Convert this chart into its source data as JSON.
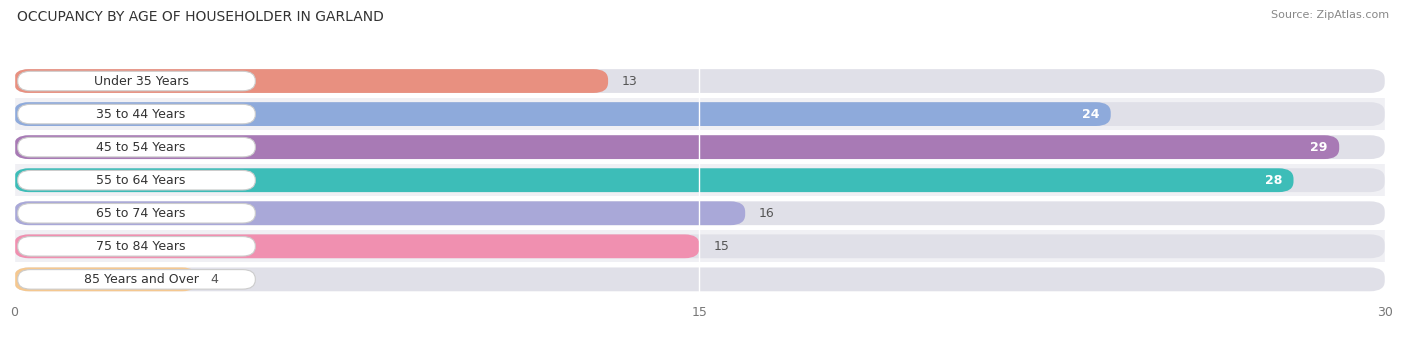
{
  "title": "OCCUPANCY BY AGE OF HOUSEHOLDER IN GARLAND",
  "source": "Source: ZipAtlas.com",
  "categories": [
    "Under 35 Years",
    "35 to 44 Years",
    "45 to 54 Years",
    "55 to 64 Years",
    "65 to 74 Years",
    "75 to 84 Years",
    "85 Years and Over"
  ],
  "values": [
    13,
    24,
    29,
    28,
    16,
    15,
    4
  ],
  "bar_colors": [
    "#e89080",
    "#8eaadb",
    "#a87ab5",
    "#3dbdb8",
    "#a9a8d8",
    "#f090b0",
    "#f5c890"
  ],
  "xlim": [
    0,
    30
  ],
  "xticks": [
    0,
    15,
    30
  ],
  "row_bg_colors": [
    "#ffffff",
    "#f0f0f4",
    "#ffffff",
    "#f0f0f4",
    "#ffffff",
    "#f0f0f4",
    "#ffffff"
  ],
  "title_fontsize": 10,
  "label_fontsize": 9,
  "value_fontsize": 9,
  "figsize": [
    14.06,
    3.4
  ],
  "dpi": 100
}
